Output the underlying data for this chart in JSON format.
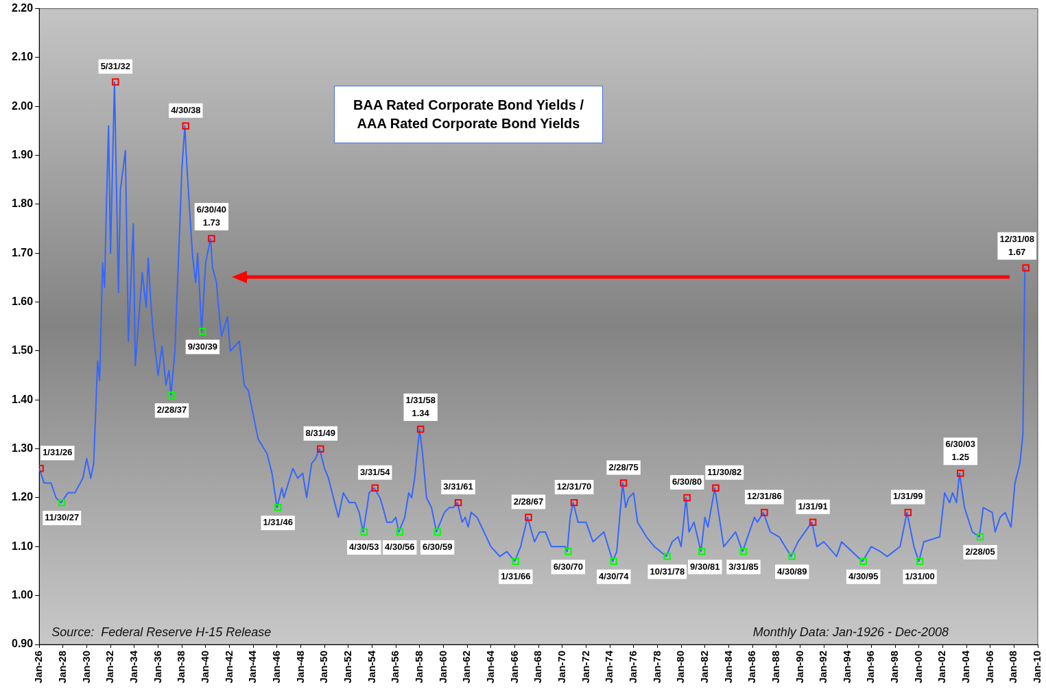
{
  "chart_data": {
    "type": "line",
    "title": "BAA Rated Corporate Bond Yields / AAA Rated Corporate Bond Yields",
    "grid": false,
    "legend": false,
    "xlim": [
      "1926-01",
      "2010-01"
    ],
    "xticks": [
      {
        "value": "1926-01",
        "label": "Jan-26"
      },
      {
        "value": "1928-01",
        "label": "Jan-28"
      },
      {
        "value": "1930-01",
        "label": "Jan-30"
      },
      {
        "value": "1932-01",
        "label": "Jan-32"
      },
      {
        "value": "1934-01",
        "label": "Jan-34"
      },
      {
        "value": "1936-01",
        "label": "Jan-36"
      },
      {
        "value": "1938-01",
        "label": "Jan-38"
      },
      {
        "value": "1940-01",
        "label": "Jan-40"
      },
      {
        "value": "1942-01",
        "label": "Jan-42"
      },
      {
        "value": "1944-01",
        "label": "Jan-44"
      },
      {
        "value": "1946-01",
        "label": "Jan-46"
      },
      {
        "value": "1948-01",
        "label": "Jan-48"
      },
      {
        "value": "1950-01",
        "label": "Jan-50"
      },
      {
        "value": "1952-01",
        "label": "Jan-52"
      },
      {
        "value": "1954-01",
        "label": "Jan-54"
      },
      {
        "value": "1956-01",
        "label": "Jan-56"
      },
      {
        "value": "1958-01",
        "label": "Jan-58"
      },
      {
        "value": "1960-01",
        "label": "Jan-60"
      },
      {
        "value": "1962-01",
        "label": "Jan-62"
      },
      {
        "value": "1964-01",
        "label": "Jan-64"
      },
      {
        "value": "1966-01",
        "label": "Jan-66"
      },
      {
        "value": "1968-01",
        "label": "Jan-68"
      },
      {
        "value": "1970-01",
        "label": "Jan-70"
      },
      {
        "value": "1972-01",
        "label": "Jan-72"
      },
      {
        "value": "1974-01",
        "label": "Jan-74"
      },
      {
        "value": "1976-01",
        "label": "Jan-76"
      },
      {
        "value": "1978-01",
        "label": "Jan-78"
      },
      {
        "value": "1980-01",
        "label": "Jan-80"
      },
      {
        "value": "1982-01",
        "label": "Jan-82"
      },
      {
        "value": "1984-01",
        "label": "Jan-84"
      },
      {
        "value": "1986-01",
        "label": "Jan-86"
      },
      {
        "value": "1988-01",
        "label": "Jan-88"
      },
      {
        "value": "1990-01",
        "label": "Jan-90"
      },
      {
        "value": "1992-01",
        "label": "Jan-92"
      },
      {
        "value": "1994-01",
        "label": "Jan-94"
      },
      {
        "value": "1996-01",
        "label": "Jan-96"
      },
      {
        "value": "1998-01",
        "label": "Jan-98"
      },
      {
        "value": "2000-01",
        "label": "Jan-00"
      },
      {
        "value": "2002-01",
        "label": "Jan-02"
      },
      {
        "value": "2004-01",
        "label": "Jan-04"
      },
      {
        "value": "2006-01",
        "label": "Jan-06"
      },
      {
        "value": "2008-01",
        "label": "Jan-08"
      },
      {
        "value": "2010-01",
        "label": "Jan-10"
      }
    ],
    "ylim": [
      0.9,
      2.2
    ],
    "yticks": [
      {
        "value": 0.9,
        "label": "0.90"
      },
      {
        "value": 1.0,
        "label": "1.00"
      },
      {
        "value": 1.1,
        "label": "1.10"
      },
      {
        "value": 1.2,
        "label": "1.20"
      },
      {
        "value": 1.3,
        "label": "1.30"
      },
      {
        "value": 1.4,
        "label": "1.40"
      },
      {
        "value": 1.5,
        "label": "1.50"
      },
      {
        "value": 1.6,
        "label": "1.60"
      },
      {
        "value": 1.7,
        "label": "1.70"
      },
      {
        "value": 1.8,
        "label": "1.80"
      },
      {
        "value": 1.9,
        "label": "1.90"
      },
      {
        "value": 2.0,
        "label": "2.00"
      },
      {
        "value": 2.1,
        "label": "2.10"
      },
      {
        "value": 2.2,
        "label": "2.20"
      }
    ],
    "series": [
      {
        "type": "line",
        "color": "#3366ff",
        "marker": "none",
        "x": [
          "1926-01",
          "1926-06",
          "1927-01",
          "1927-06",
          "1927-11",
          "1928-06",
          "1929-01",
          "1929-09",
          "1930-01",
          "1930-05",
          "1930-08",
          "1930-12",
          "1931-02",
          "1931-05",
          "1931-07",
          "1931-09",
          "1931-11",
          "1932-01",
          "1932-05",
          "1932-09",
          "1932-11",
          "1933-04",
          "1933-07",
          "1933-12",
          "1934-02",
          "1934-09",
          "1935-01",
          "1935-03",
          "1935-06",
          "1935-08",
          "1936-01",
          "1936-05",
          "1936-09",
          "1936-12",
          "1937-02",
          "1937-06",
          "1937-11",
          "1938-01",
          "1938-04",
          "1938-06",
          "1938-10",
          "1938-12",
          "1939-03",
          "1939-05",
          "1939-09",
          "1940-01",
          "1940-06",
          "1940-08",
          "1940-12",
          "1941-02",
          "1941-05",
          "1941-11",
          "1942-02",
          "1942-11",
          "1943-04",
          "1943-08",
          "1944-02",
          "1944-06",
          "1945-03",
          "1945-08",
          "1946-01",
          "1946-06",
          "1946-08",
          "1947-05",
          "1947-10",
          "1948-03",
          "1948-07",
          "1948-12",
          "1949-04",
          "1949-08",
          "1950-01",
          "1950-05",
          "1950-10",
          "1951-03",
          "1951-08",
          "1952-02",
          "1952-08",
          "1952-12",
          "1953-04",
          "1953-08",
          "1953-10",
          "1954-03",
          "1954-09",
          "1954-12",
          "1955-04",
          "1955-09",
          "1956-01",
          "1956-04",
          "1956-10",
          "1957-02",
          "1957-05",
          "1957-08",
          "1958-01",
          "1958-04",
          "1958-08",
          "1959-01",
          "1959-06",
          "1959-10",
          "1960-02",
          "1960-07",
          "1960-11",
          "1961-03",
          "1961-08",
          "1961-11",
          "1962-02",
          "1962-05",
          "1962-11",
          "1963-06",
          "1964-01",
          "1964-10",
          "1965-05",
          "1966-01",
          "1966-07",
          "1967-02",
          "1967-09",
          "1968-02",
          "1968-08",
          "1969-02",
          "1970-04",
          "1970-06",
          "1970-09",
          "1970-12",
          "1971-05",
          "1972-01",
          "1972-08",
          "1973-07",
          "1974-04",
          "1974-08",
          "1975-02",
          "1975-05",
          "1975-08",
          "1976-01",
          "1976-05",
          "1977-02",
          "1977-10",
          "1978-10",
          "1979-04",
          "1979-10",
          "1980-01",
          "1980-06",
          "1980-09",
          "1981-02",
          "1981-09",
          "1982-01",
          "1982-04",
          "1982-11",
          "1983-08",
          "1984-08",
          "1985-03",
          "1986-03",
          "1986-06",
          "1986-12",
          "1987-07",
          "1988-04",
          "1989-04",
          "1989-11",
          "1991-01",
          "1991-06",
          "1992-01",
          "1993-02",
          "1993-07",
          "1995-04",
          "1996-01",
          "1996-10",
          "1997-05",
          "1998-06",
          "1999-01",
          "1999-08",
          "2000-01",
          "2000-06",
          "2001-10",
          "2002-03",
          "2002-08",
          "2002-11",
          "2003-03",
          "2003-06",
          "2003-11",
          "2004-07",
          "2005-02",
          "2005-06",
          "2006-03",
          "2006-06",
          "2006-11",
          "2007-04",
          "2007-10",
          "2008-02",
          "2008-07",
          "2008-10",
          "2008-12"
        ],
        "values": [
          1.26,
          1.23,
          1.23,
          1.2,
          1.19,
          1.21,
          1.21,
          1.24,
          1.28,
          1.24,
          1.27,
          1.48,
          1.44,
          1.68,
          1.63,
          1.81,
          1.96,
          1.7,
          2.05,
          1.62,
          1.83,
          1.91,
          1.52,
          1.76,
          1.47,
          1.66,
          1.59,
          1.69,
          1.59,
          1.54,
          1.45,
          1.51,
          1.43,
          1.46,
          1.41,
          1.5,
          1.76,
          1.87,
          1.96,
          1.88,
          1.75,
          1.69,
          1.64,
          1.7,
          1.54,
          1.68,
          1.73,
          1.67,
          1.64,
          1.59,
          1.53,
          1.57,
          1.5,
          1.52,
          1.43,
          1.42,
          1.36,
          1.32,
          1.29,
          1.25,
          1.18,
          1.22,
          1.2,
          1.26,
          1.24,
          1.25,
          1.2,
          1.27,
          1.28,
          1.3,
          1.26,
          1.24,
          1.2,
          1.16,
          1.21,
          1.19,
          1.19,
          1.17,
          1.13,
          1.18,
          1.21,
          1.22,
          1.2,
          1.18,
          1.15,
          1.15,
          1.16,
          1.13,
          1.16,
          1.21,
          1.2,
          1.24,
          1.34,
          1.29,
          1.2,
          1.18,
          1.13,
          1.15,
          1.17,
          1.18,
          1.18,
          1.19,
          1.15,
          1.16,
          1.14,
          1.17,
          1.16,
          1.13,
          1.1,
          1.08,
          1.09,
          1.07,
          1.1,
          1.16,
          1.11,
          1.13,
          1.13,
          1.1,
          1.1,
          1.09,
          1.16,
          1.19,
          1.15,
          1.15,
          1.11,
          1.13,
          1.07,
          1.09,
          1.23,
          1.18,
          1.2,
          1.21,
          1.15,
          1.12,
          1.1,
          1.08,
          1.11,
          1.12,
          1.1,
          1.2,
          1.13,
          1.15,
          1.09,
          1.16,
          1.14,
          1.22,
          1.1,
          1.13,
          1.09,
          1.16,
          1.15,
          1.17,
          1.13,
          1.12,
          1.08,
          1.11,
          1.15,
          1.1,
          1.11,
          1.08,
          1.11,
          1.07,
          1.1,
          1.09,
          1.08,
          1.1,
          1.17,
          1.1,
          1.07,
          1.11,
          1.12,
          1.21,
          1.19,
          1.21,
          1.19,
          1.25,
          1.18,
          1.13,
          1.12,
          1.18,
          1.17,
          1.13,
          1.16,
          1.17,
          1.14,
          1.23,
          1.27,
          1.33,
          1.67
        ]
      },
      {
        "type": "scatter",
        "color": "#ff0000",
        "marker": "square",
        "x": [
          "1926-01-31",
          "1932-05-31",
          "1938-04-30",
          "1940-06-30",
          "1949-08-31",
          "1954-03-31",
          "1958-01-31",
          "1961-03-31",
          "1967-02-28",
          "1970-12-31",
          "1975-02-28",
          "1980-06-30",
          "1982-11-30",
          "1986-12-31",
          "1991-01-31",
          "1999-01-31",
          "2003-06-30",
          "2008-12-31"
        ],
        "values": [
          1.26,
          2.05,
          1.96,
          1.73,
          1.3,
          1.22,
          1.34,
          1.19,
          1.16,
          1.19,
          1.23,
          1.2,
          1.22,
          1.17,
          1.15,
          1.17,
          1.25,
          1.67
        ]
      },
      {
        "type": "scatter",
        "color": "#00ff00",
        "marker": "square",
        "x": [
          "1927-11-30",
          "1937-02-28",
          "1939-09-30",
          "1946-01-31",
          "1953-04-30",
          "1956-04-30",
          "1959-06-30",
          "1966-01-31",
          "1970-06-30",
          "1974-04-30",
          "1978-10-31",
          "1981-09-30",
          "1985-03-31",
          "1989-04-30",
          "1995-04-30",
          "2000-01-31",
          "2005-02-28"
        ],
        "values": [
          1.19,
          1.41,
          1.54,
          1.18,
          1.13,
          1.13,
          1.13,
          1.07,
          1.09,
          1.07,
          1.08,
          1.09,
          1.09,
          1.08,
          1.07,
          1.07,
          1.12
        ]
      }
    ],
    "annotations": [
      {
        "text": "1/31/26",
        "x": "1926-01-31",
        "y": 1.26
      },
      {
        "text": "5/31/32",
        "x": "1932-05-31",
        "y": 2.05
      },
      {
        "text": "4/30/38",
        "x": "1938-04-30",
        "y": 1.96
      },
      {
        "text": "6/30/40 1.73",
        "x": "1940-06-30",
        "y": 1.73
      },
      {
        "text": "8/31/49",
        "x": "1949-08-31",
        "y": 1.3
      },
      {
        "text": "3/31/54",
        "x": "1954-03-31",
        "y": 1.22
      },
      {
        "text": "1/31/58 1.34",
        "x": "1958-01-31",
        "y": 1.34
      },
      {
        "text": "3/31/61",
        "x": "1961-03-31",
        "y": 1.19
      },
      {
        "text": "2/28/67",
        "x": "1967-02-28",
        "y": 1.16
      },
      {
        "text": "12/31/70",
        "x": "1970-12-31",
        "y": 1.19
      },
      {
        "text": "2/28/75",
        "x": "1975-02-28",
        "y": 1.23
      },
      {
        "text": "6/30/80",
        "x": "1980-06-30",
        "y": 1.2
      },
      {
        "text": "11/30/82",
        "x": "1982-11-30",
        "y": 1.22
      },
      {
        "text": "12/31/86",
        "x": "1986-12-31",
        "y": 1.17
      },
      {
        "text": "1/31/91",
        "x": "1991-01-31",
        "y": 1.15
      },
      {
        "text": "1/31/99",
        "x": "1999-01-31",
        "y": 1.17
      },
      {
        "text": "6/30/03 1.25",
        "x": "2003-06-30",
        "y": 1.25
      },
      {
        "text": "12/31/08 1.67",
        "x": "2008-12-31",
        "y": 1.67
      },
      {
        "text": "11/30/27",
        "x": "1927-11-30",
        "y": 1.19
      },
      {
        "text": "2/28/37",
        "x": "1937-02-28",
        "y": 1.41
      },
      {
        "text": "9/30/39",
        "x": "1939-09-30",
        "y": 1.54
      },
      {
        "text": "1/31/46",
        "x": "1946-01-31",
        "y": 1.18
      },
      {
        "text": "4/30/53",
        "x": "1953-04-30",
        "y": 1.13
      },
      {
        "text": "4/30/56",
        "x": "1956-04-30",
        "y": 1.13
      },
      {
        "text": "6/30/59",
        "x": "1959-06-30",
        "y": 1.13
      },
      {
        "text": "1/31/66",
        "x": "1966-01-31",
        "y": 1.07
      },
      {
        "text": "6/30/70",
        "x": "1970-06-30",
        "y": 1.09
      },
      {
        "text": "4/30/74",
        "x": "1974-04-30",
        "y": 1.07
      },
      {
        "text": "10/31/78",
        "x": "1978-10-31",
        "y": 1.08
      },
      {
        "text": "9/30/81",
        "x": "1981-09-30",
        "y": 1.09
      },
      {
        "text": "3/31/85",
        "x": "1985-03-31",
        "y": 1.09
      },
      {
        "text": "4/30/89",
        "x": "1989-04-30",
        "y": 1.08
      },
      {
        "text": "4/30/95",
        "x": "1995-04-30",
        "y": 1.07
      },
      {
        "text": "1/31/00",
        "x": "2000-01-31",
        "y": 1.07
      },
      {
        "text": "2/28/05",
        "x": "2005-02-28",
        "y": 1.12
      },
      "Source:  Federal Reserve H-15 Release",
      "Monthly Data: Jan-1926 - Dec-2008"
    ]
  }
}
